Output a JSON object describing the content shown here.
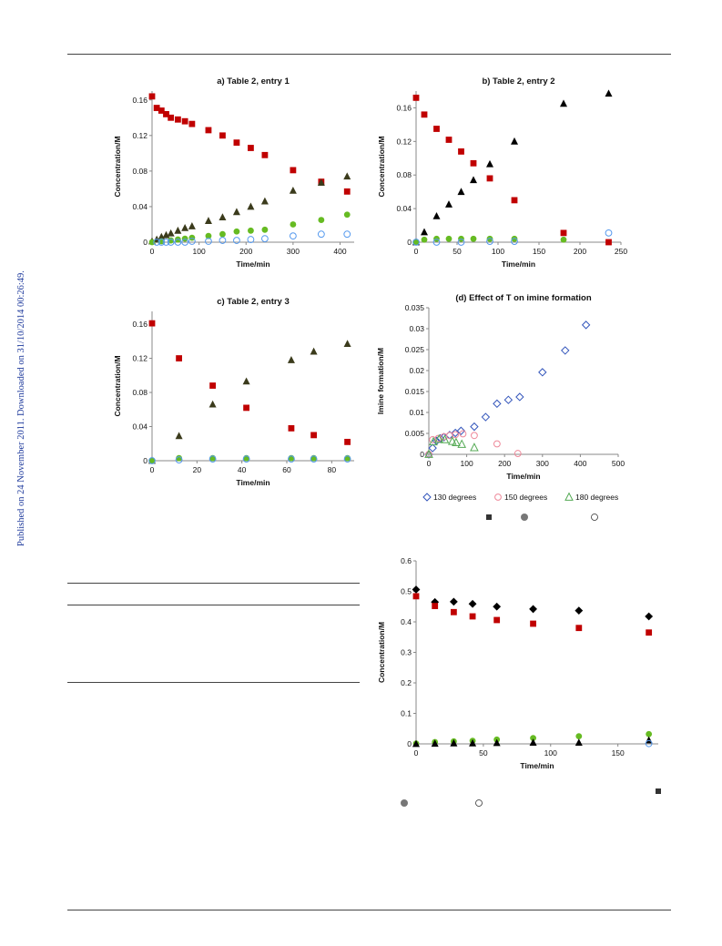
{
  "side_note": "Published on 24 November 2011. Downloaded on 31/10/2014 00:26:49.",
  "colors": {
    "red": "#c00000",
    "green": "#66bb22",
    "blue": "#5599ee",
    "olive": "#3b3b1c",
    "black": "#000000",
    "pink": "#ee8899",
    "green2": "#55aa55",
    "navy": "#3355bb"
  },
  "chart_data": [
    {
      "id": "a",
      "type": "scatter",
      "title": "a) Table 2, entry 1",
      "xlabel": "Time/min",
      "ylabel": "Concentration/M",
      "xlim": [
        0,
        430
      ],
      "ylim": [
        0,
        0.17
      ],
      "xticks": [
        "0",
        "100",
        "200",
        "300",
        "400"
      ],
      "xtick_values": [
        0,
        100,
        200,
        300,
        400
      ],
      "yticks": [
        "0",
        "0.04",
        "0.08",
        "0.12",
        "0.16"
      ],
      "ytick_values": [
        0,
        0.04,
        0.08,
        0.12,
        0.16
      ],
      "series": [
        {
          "marker": "square",
          "color": "#c00000",
          "points": [
            [
              0,
              0.164
            ],
            [
              10,
              0.151
            ],
            [
              20,
              0.148
            ],
            [
              30,
              0.144
            ],
            [
              40,
              0.14
            ],
            [
              55,
              0.138
            ],
            [
              70,
              0.136
            ],
            [
              85,
              0.133
            ],
            [
              120,
              0.126
            ],
            [
              150,
              0.12
            ],
            [
              180,
              0.112
            ],
            [
              210,
              0.106
            ],
            [
              240,
              0.098
            ],
            [
              300,
              0.081
            ],
            [
              360,
              0.068
            ],
            [
              415,
              0.057
            ]
          ]
        },
        {
          "marker": "triangle",
          "color": "#3b3b1c",
          "points": [
            [
              0,
              0.001
            ],
            [
              10,
              0.003
            ],
            [
              20,
              0.006
            ],
            [
              30,
              0.008
            ],
            [
              40,
              0.01
            ],
            [
              55,
              0.013
            ],
            [
              70,
              0.016
            ],
            [
              85,
              0.018
            ],
            [
              120,
              0.024
            ],
            [
              150,
              0.028
            ],
            [
              180,
              0.034
            ],
            [
              210,
              0.04
            ],
            [
              240,
              0.046
            ],
            [
              300,
              0.058
            ],
            [
              360,
              0.067
            ],
            [
              415,
              0.074
            ]
          ]
        },
        {
          "marker": "circle",
          "color": "#66bb22",
          "points": [
            [
              0,
              0.0
            ],
            [
              20,
              0.001
            ],
            [
              40,
              0.002
            ],
            [
              55,
              0.003
            ],
            [
              70,
              0.004
            ],
            [
              85,
              0.005
            ],
            [
              120,
              0.007
            ],
            [
              150,
              0.009
            ],
            [
              180,
              0.012
            ],
            [
              210,
              0.013
            ],
            [
              240,
              0.014
            ],
            [
              300,
              0.02
            ],
            [
              360,
              0.025
            ],
            [
              415,
              0.031
            ]
          ]
        },
        {
          "marker": "circle-open",
          "color": "#5599ee",
          "points": [
            [
              10,
              0.0
            ],
            [
              20,
              0.0
            ],
            [
              30,
              0.0
            ],
            [
              40,
              0.0
            ],
            [
              55,
              0.0
            ],
            [
              70,
              0.0
            ],
            [
              85,
              0.001
            ],
            [
              120,
              0.001
            ],
            [
              150,
              0.002
            ],
            [
              180,
              0.002
            ],
            [
              210,
              0.003
            ],
            [
              240,
              0.004
            ],
            [
              300,
              0.007
            ],
            [
              360,
              0.009
            ],
            [
              415,
              0.009
            ]
          ]
        }
      ]
    },
    {
      "id": "b",
      "type": "scatter",
      "title": "b) Table 2, entry 2",
      "xlabel": "Time/min",
      "ylabel": "Concentration/M",
      "xlim": [
        0,
        250
      ],
      "ylim": [
        0,
        0.18
      ],
      "xticks": [
        "0",
        "50",
        "100",
        "150",
        "200",
        "250"
      ],
      "xtick_values": [
        0,
        50,
        100,
        150,
        200,
        250
      ],
      "yticks": [
        "0",
        "0.04",
        "0.08",
        "0.12",
        "0.16"
      ],
      "ytick_values": [
        0,
        0.04,
        0.08,
        0.12,
        0.16
      ],
      "series": [
        {
          "marker": "square",
          "color": "#c00000",
          "points": [
            [
              0,
              0.172
            ],
            [
              10,
              0.152
            ],
            [
              25,
              0.135
            ],
            [
              40,
              0.122
            ],
            [
              55,
              0.108
            ],
            [
              70,
              0.094
            ],
            [
              90,
              0.076
            ],
            [
              120,
              0.05
            ],
            [
              180,
              0.011
            ],
            [
              235,
              0.0
            ]
          ]
        },
        {
          "marker": "triangle",
          "color": "#000000",
          "points": [
            [
              0,
              0.0
            ],
            [
              10,
              0.012
            ],
            [
              25,
              0.031
            ],
            [
              40,
              0.045
            ],
            [
              55,
              0.06
            ],
            [
              70,
              0.074
            ],
            [
              90,
              0.093
            ],
            [
              120,
              0.12
            ],
            [
              180,
              0.165
            ],
            [
              235,
              0.177
            ]
          ]
        },
        {
          "marker": "circle",
          "color": "#66bb22",
          "points": [
            [
              0,
              0.0
            ],
            [
              10,
              0.003
            ],
            [
              25,
              0.004
            ],
            [
              40,
              0.004
            ],
            [
              55,
              0.004
            ],
            [
              70,
              0.004
            ],
            [
              90,
              0.004
            ],
            [
              120,
              0.004
            ],
            [
              180,
              0.003
            ]
          ]
        },
        {
          "marker": "circle-open",
          "color": "#5599ee",
          "points": [
            [
              0,
              0.0
            ],
            [
              25,
              0.0
            ],
            [
              55,
              0.0
            ],
            [
              90,
              0.001
            ],
            [
              120,
              0.001
            ],
            [
              235,
              0.011
            ]
          ]
        }
      ]
    },
    {
      "id": "c",
      "type": "scatter",
      "title": "c) Table 2, entry 3",
      "xlabel": "Time/min",
      "ylabel": "Concentration/M",
      "xlim": [
        0,
        90
      ],
      "ylim": [
        0,
        0.175
      ],
      "xticks": [
        "0",
        "20",
        "40",
        "60",
        "80"
      ],
      "xtick_values": [
        0,
        20,
        40,
        60,
        80
      ],
      "yticks": [
        "0",
        "0.04",
        "0.08",
        "0.12",
        "0.16"
      ],
      "ytick_values": [
        0,
        0.04,
        0.08,
        0.12,
        0.16
      ],
      "series": [
        {
          "marker": "square",
          "color": "#c00000",
          "points": [
            [
              0,
              0.161
            ],
            [
              12,
              0.12
            ],
            [
              27,
              0.088
            ],
            [
              42,
              0.062
            ],
            [
              62,
              0.038
            ],
            [
              72,
              0.03
            ],
            [
              87,
              0.022
            ]
          ]
        },
        {
          "marker": "triangle",
          "color": "#3b3b1c",
          "points": [
            [
              0,
              0.0
            ],
            [
              12,
              0.029
            ],
            [
              27,
              0.066
            ],
            [
              42,
              0.093
            ],
            [
              62,
              0.118
            ],
            [
              72,
              0.128
            ],
            [
              87,
              0.137
            ]
          ]
        },
        {
          "marker": "circle",
          "color": "#66bb22",
          "points": [
            [
              0,
              0.0
            ],
            [
              12,
              0.003
            ],
            [
              27,
              0.003
            ],
            [
              42,
              0.003
            ],
            [
              62,
              0.003
            ],
            [
              72,
              0.003
            ],
            [
              87,
              0.003
            ]
          ]
        },
        {
          "marker": "circle-open",
          "color": "#5599ee",
          "points": [
            [
              0,
              0.0
            ],
            [
              12,
              0.001
            ],
            [
              27,
              0.002
            ],
            [
              42,
              0.002
            ],
            [
              62,
              0.002
            ],
            [
              72,
              0.002
            ],
            [
              87,
              0.002
            ]
          ]
        }
      ]
    },
    {
      "id": "d",
      "type": "scatter",
      "title": "(d) Effect of T on imine formation",
      "xlabel": "Time/min",
      "ylabel": "Imine formation/M",
      "xlim": [
        0,
        500
      ],
      "ylim": [
        0,
        0.035
      ],
      "xticks": [
        "0",
        "100",
        "200",
        "300",
        "400",
        "500"
      ],
      "xtick_values": [
        0,
        100,
        200,
        300,
        400,
        500
      ],
      "yticks": [
        "0",
        "0.005",
        "0.01",
        "0.015",
        "0.02",
        "0.025",
        "0.03",
        "0.035"
      ],
      "ytick_values": [
        0,
        0.005,
        0.01,
        0.015,
        0.02,
        0.025,
        0.03,
        0.035
      ],
      "series": [
        {
          "name": "130 degrees",
          "marker": "diamond-open",
          "color": "#3355bb",
          "points": [
            [
              0,
              0.0
            ],
            [
              10,
              0.0015
            ],
            [
              20,
              0.0032
            ],
            [
              30,
              0.0038
            ],
            [
              40,
              0.0041
            ],
            [
              55,
              0.0046
            ],
            [
              70,
              0.0051
            ],
            [
              85,
              0.0056
            ],
            [
              120,
              0.0066
            ],
            [
              150,
              0.0089
            ],
            [
              180,
              0.0121
            ],
            [
              210,
              0.013
            ],
            [
              240,
              0.0137
            ],
            [
              300,
              0.0196
            ],
            [
              360,
              0.0248
            ],
            [
              415,
              0.0309
            ]
          ]
        },
        {
          "name": "150 degrees",
          "marker": "circle-open",
          "color": "#ee8899",
          "points": [
            [
              0,
              0.0
            ],
            [
              10,
              0.0035
            ],
            [
              25,
              0.0038
            ],
            [
              40,
              0.0042
            ],
            [
              55,
              0.0045
            ],
            [
              70,
              0.0047
            ],
            [
              90,
              0.0049
            ],
            [
              120,
              0.0045
            ],
            [
              180,
              0.0025
            ],
            [
              235,
              0.0002
            ]
          ]
        },
        {
          "name": "180 degrees",
          "marker": "triangle-open",
          "color": "#55aa55",
          "points": [
            [
              0,
              0.0
            ],
            [
              12,
              0.003
            ],
            [
              27,
              0.0036
            ],
            [
              42,
              0.0035
            ],
            [
              62,
              0.0031
            ],
            [
              72,
              0.0028
            ],
            [
              87,
              0.0024
            ],
            [
              120,
              0.0016
            ]
          ]
        }
      ]
    },
    {
      "id": "e",
      "type": "scatter",
      "title": "",
      "xlabel": "Time/min",
      "ylabel": "Concentration/M",
      "xlim": [
        0,
        180
      ],
      "ylim": [
        0,
        0.6
      ],
      "xticks": [
        "0",
        "50",
        "100",
        "150"
      ],
      "xtick_values": [
        0,
        50,
        100,
        150
      ],
      "yticks": [
        "0",
        "0.1",
        "0.2",
        "0.3",
        "0.4",
        "0.5",
        "0.6"
      ],
      "ytick_values": [
        0,
        0.1,
        0.2,
        0.3,
        0.4,
        0.5,
        0.6
      ],
      "series": [
        {
          "marker": "diamond",
          "color": "#000000",
          "points": [
            [
              0,
              0.506
            ],
            [
              14,
              0.465
            ],
            [
              28,
              0.466
            ],
            [
              42,
              0.459
            ],
            [
              60,
              0.45
            ],
            [
              87,
              0.442
            ],
            [
              121,
              0.437
            ],
            [
              173,
              0.418
            ]
          ]
        },
        {
          "marker": "square",
          "color": "#c00000",
          "points": [
            [
              0,
              0.484
            ],
            [
              14,
              0.452
            ],
            [
              28,
              0.432
            ],
            [
              42,
              0.418
            ],
            [
              60,
              0.406
            ],
            [
              87,
              0.394
            ],
            [
              121,
              0.38
            ],
            [
              173,
              0.365
            ]
          ]
        },
        {
          "marker": "circle",
          "color": "#66bb22",
          "points": [
            [
              0,
              0.001
            ],
            [
              14,
              0.006
            ],
            [
              28,
              0.008
            ],
            [
              42,
              0.01
            ],
            [
              60,
              0.014
            ],
            [
              87,
              0.019
            ],
            [
              121,
              0.025
            ],
            [
              173,
              0.032
            ]
          ]
        },
        {
          "marker": "triangle",
          "color": "#000000",
          "points": [
            [
              0,
              0.0
            ],
            [
              14,
              0.001
            ],
            [
              28,
              0.002
            ],
            [
              42,
              0.002
            ],
            [
              60,
              0.003
            ],
            [
              87,
              0.004
            ],
            [
              121,
              0.004
            ],
            [
              173,
              0.012
            ]
          ]
        },
        {
          "marker": "circle-open",
          "color": "#5599ee",
          "points": [
            [
              173,
              0.001
            ]
          ]
        }
      ]
    }
  ]
}
